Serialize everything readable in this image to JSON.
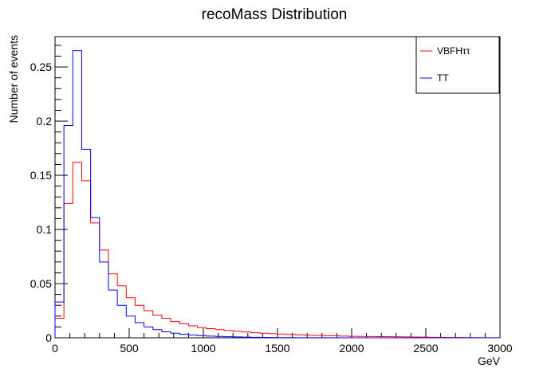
{
  "chart_data": {
    "type": "histogram",
    "title": "recoMass Distribution",
    "xlabel": "GeV",
    "ylabel": "Number of events",
    "xlim": [
      0,
      3000
    ],
    "ylim": [
      0,
      0.278
    ],
    "bin_width": 60,
    "x_ticks": [
      0,
      500,
      1000,
      1500,
      2000,
      2500,
      3000
    ],
    "x_tick_labels": [
      "0",
      "500",
      "1000",
      "1500",
      "2000",
      "2500",
      "3000"
    ],
    "y_ticks": [
      0,
      0.05,
      0.1,
      0.15,
      0.2,
      0.25
    ],
    "y_tick_labels": [
      "0",
      "0.05",
      "0.1",
      "0.15",
      "0.2",
      "0.25"
    ],
    "legend_position": "top-right",
    "grid": false,
    "series": [
      {
        "name": "VBFHττ",
        "color": "#ff0000",
        "values": [
          0.018,
          0.124,
          0.162,
          0.145,
          0.106,
          0.081,
          0.059,
          0.048,
          0.037,
          0.03,
          0.025,
          0.021,
          0.018,
          0.015,
          0.013,
          0.011,
          0.0095,
          0.0085,
          0.0075,
          0.0067,
          0.006,
          0.0053,
          0.0047,
          0.0042,
          0.0038,
          0.0034,
          0.003,
          0.0027,
          0.0024,
          0.0022,
          0.002,
          0.0018,
          0.0016,
          0.0014,
          0.0013,
          0.0012,
          0.0011,
          0.001,
          0.0009,
          0.0008,
          0.0007,
          0.0006,
          0.0005,
          0.0004,
          0.0003,
          0.0003,
          0.0002,
          0.0002,
          0.0001,
          0.0001
        ]
      },
      {
        "name": "TT",
        "color": "#0000ff",
        "values": [
          0.033,
          0.196,
          0.265,
          0.174,
          0.111,
          0.07,
          0.044,
          0.03,
          0.02,
          0.014,
          0.01,
          0.0075,
          0.0055,
          0.0042,
          0.0032,
          0.0025,
          0.002,
          0.0016,
          0.0013,
          0.001,
          0.0008,
          0.0006,
          0.0005,
          0.0004,
          0.0003,
          0.0002,
          0.0002,
          0.0001,
          0.0001,
          0.0001,
          0.0001,
          0.0001,
          0,
          0,
          0,
          0,
          0,
          0,
          0,
          0,
          0,
          0,
          0,
          0,
          0,
          0,
          0,
          0,
          0,
          0
        ]
      }
    ]
  }
}
